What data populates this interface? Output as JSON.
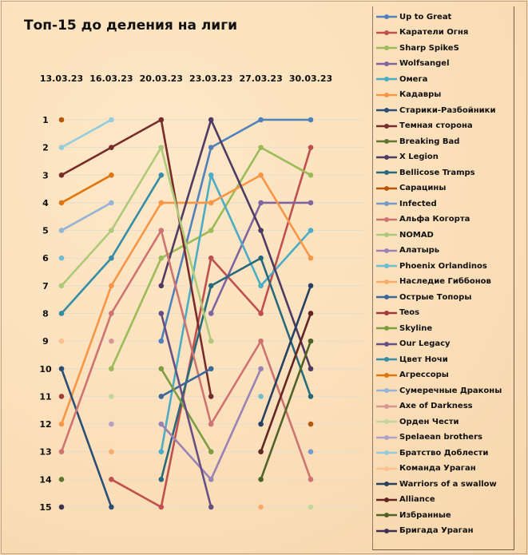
{
  "chart_data": {
    "type": "line",
    "title": "Топ-15 до деления на лиги",
    "xlabel": "",
    "ylabel": "",
    "categories": [
      "13.03.23",
      "16.03.23",
      "20.03.23",
      "23.03.23",
      "27.03.23",
      "30.03.23"
    ],
    "ylim": [
      15,
      1
    ],
    "y_ticks": [
      "1",
      "2",
      "3",
      "4",
      "5",
      "6",
      "7",
      "8",
      "9",
      "10",
      "11",
      "12",
      "13",
      "14",
      "15"
    ],
    "grid": true,
    "legend": "right",
    "series": [
      {
        "name": "Up to Great",
        "color": "#4F81BD",
        "values": [
          null,
          null,
          9,
          2,
          1,
          1
        ]
      },
      {
        "name": "Каратели Огня",
        "color": "#C0504D",
        "values": [
          null,
          14,
          15,
          6,
          8,
          2
        ]
      },
      {
        "name": "Sharp SpikeS",
        "color": "#9BBB59",
        "values": [
          null,
          10,
          6,
          5,
          2,
          3
        ]
      },
      {
        "name": "Wolfsangel",
        "color": "#8064A2",
        "values": [
          null,
          null,
          null,
          8,
          4,
          4
        ]
      },
      {
        "name": "Омега",
        "color": "#4BACC6",
        "values": [
          null,
          null,
          13,
          3,
          7,
          5
        ]
      },
      {
        "name": "Кадавры",
        "color": "#F79646",
        "values": [
          12,
          7,
          4,
          4,
          3,
          6
        ]
      },
      {
        "name": "Старики-Разбойники",
        "color": "#2C4D75",
        "values": [
          10,
          15,
          null,
          null,
          null,
          null
        ]
      },
      {
        "name": "Темная сторона",
        "color": "#772C2A",
        "values": [
          3,
          2,
          1,
          11,
          null,
          null
        ]
      },
      {
        "name": "Breaking Bad",
        "color": "#5F7530",
        "values": [
          14,
          null,
          null,
          null,
          null,
          null
        ]
      },
      {
        "name": "X Legion",
        "color": "#4D3B62",
        "values": [
          null,
          null,
          7,
          1,
          5,
          10
        ]
      },
      {
        "name": "Bellicose Tramps",
        "color": "#276A7C",
        "values": [
          null,
          null,
          14,
          7,
          6,
          11
        ]
      },
      {
        "name": "Сарацины",
        "color": "#B65708",
        "values": [
          1,
          null,
          null,
          null,
          null,
          12
        ]
      },
      {
        "name": "Infected",
        "color": "#729ACA",
        "values": [
          null,
          null,
          null,
          null,
          null,
          13
        ]
      },
      {
        "name": "Альфа Когорта",
        "color": "#CD7371",
        "values": [
          13,
          8,
          5,
          12,
          9,
          14
        ]
      },
      {
        "name": "NOMAD",
        "color": "#AFC97A",
        "values": [
          7,
          5,
          2,
          9,
          null,
          null
        ]
      },
      {
        "name": "Алатырь",
        "color": "#9983B5",
        "values": [
          null,
          null,
          12,
          14,
          10,
          null
        ]
      },
      {
        "name": "Phoenix Orlandinos",
        "color": "#6FBDD1",
        "values": [
          6,
          null,
          null,
          null,
          11,
          null
        ]
      },
      {
        "name": "Наследие Гиббонов",
        "color": "#F9AB6B",
        "values": [
          null,
          13,
          null,
          null,
          15,
          null
        ]
      },
      {
        "name": "Острые Топоры",
        "color": "#3A679C",
        "values": [
          null,
          null,
          11,
          10,
          null,
          null
        ]
      },
      {
        "name": "Teos",
        "color": "#9F3B38",
        "values": [
          11,
          null,
          null,
          null,
          null,
          null
        ]
      },
      {
        "name": "Skyline",
        "color": "#7E9D40",
        "values": [
          null,
          null,
          10,
          13,
          null,
          null
        ]
      },
      {
        "name": "Our Legacy",
        "color": "#664F83",
        "values": [
          null,
          null,
          8,
          15,
          null,
          null
        ]
      },
      {
        "name": "Цвет Ночи",
        "color": "#358EA6",
        "values": [
          8,
          6,
          3,
          null,
          null,
          null
        ]
      },
      {
        "name": "Агрессоры",
        "color": "#E0750B",
        "values": [
          4,
          3,
          null,
          null,
          null,
          null
        ]
      },
      {
        "name": "Сумеречные Драконы",
        "color": "#95B3D7",
        "values": [
          5,
          4,
          null,
          null,
          null,
          null
        ]
      },
      {
        "name": "Axe of Darkness",
        "color": "#D99694",
        "values": [
          null,
          9,
          null,
          null,
          null,
          null
        ]
      },
      {
        "name": "Орден Чести",
        "color": "#C3D69B",
        "values": [
          null,
          11,
          null,
          null,
          null,
          15
        ]
      },
      {
        "name": "Spelaean brothers",
        "color": "#B2A1C7",
        "values": [
          null,
          12,
          null,
          null,
          null,
          null
        ]
      },
      {
        "name": "Братство Доблести",
        "color": "#93CDDD",
        "values": [
          2,
          1,
          null,
          null,
          null,
          null
        ]
      },
      {
        "name": "Команда Ураган",
        "color": "#FAC090",
        "values": [
          9,
          null,
          null,
          null,
          null,
          null
        ]
      },
      {
        "name": "Warriors of a swallow",
        "color": "#254061",
        "values": [
          null,
          null,
          null,
          null,
          12,
          7
        ]
      },
      {
        "name": "Alliance",
        "color": "#632523",
        "values": [
          null,
          null,
          null,
          null,
          13,
          8
        ]
      },
      {
        "name": "Избранные",
        "color": "#4F6228",
        "values": [
          null,
          null,
          null,
          null,
          14,
          9
        ]
      },
      {
        "name": "Бригада Ураган",
        "color": "#3F3151",
        "values": [
          15,
          null,
          null,
          null,
          null,
          null
        ]
      }
    ]
  }
}
